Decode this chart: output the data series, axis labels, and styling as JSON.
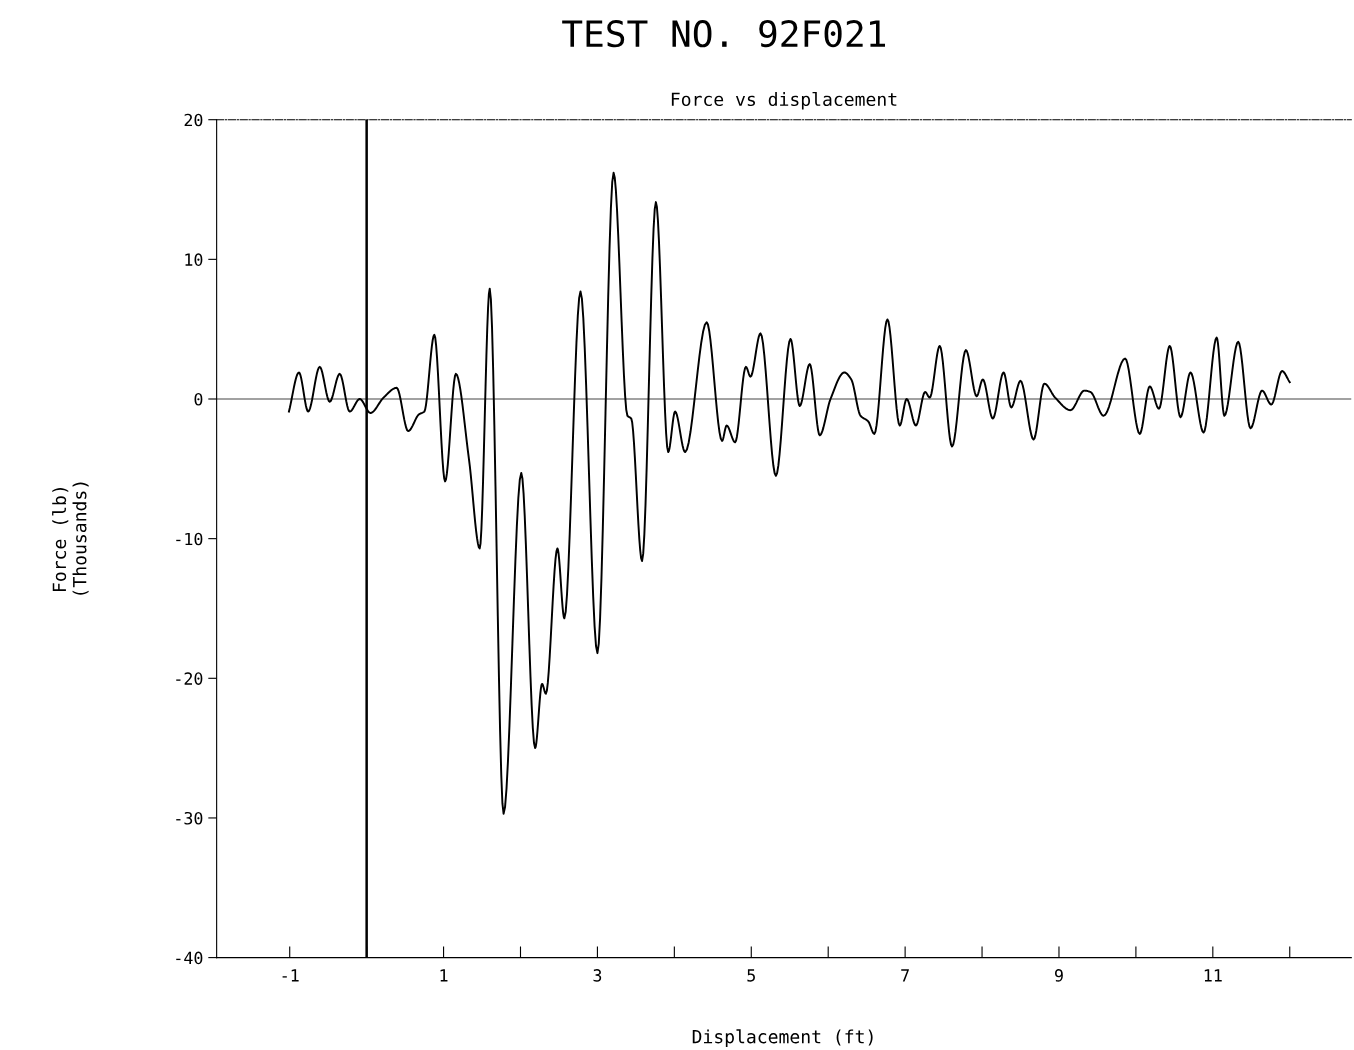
{
  "chart_data": {
    "type": "line",
    "title": "TEST NO. 92F021",
    "subtitle": "Force vs displacement",
    "xlabel": "Displacement (ft)",
    "ylabel": "Force (lb)\n(Thousands)",
    "xlim": [
      -1.95,
      12.8
    ],
    "ylim": [
      -40,
      20
    ],
    "xticks": [
      -1,
      {
        "value": 0,
        "label": null
      },
      1,
      {
        "value": 2,
        "label": null
      },
      3,
      {
        "value": 4,
        "label": null
      },
      5,
      {
        "value": 6,
        "label": null
      },
      7,
      {
        "value": 8,
        "label": null
      },
      9,
      {
        "value": 10,
        "label": null
      },
      11,
      {
        "value": 12,
        "label": null
      }
    ],
    "yticks": [
      20,
      10,
      0,
      -10,
      -20,
      -30,
      -40
    ],
    "grid": false,
    "legend": false,
    "marker": "none",
    "line_style": "solid",
    "ref_lines": [
      {
        "axis": "y",
        "value": 0,
        "label": null,
        "color": "#444444"
      },
      {
        "axis": "x",
        "value": 0,
        "label": null,
        "color": "#000000"
      }
    ],
    "series": [
      {
        "color": "#000000",
        "x": [
          -1.01,
          -0.88,
          -0.76,
          -0.61,
          -0.48,
          -0.35,
          -0.22,
          -0.09,
          0.05,
          0.22,
          0.39,
          0.54,
          0.68,
          0.75,
          0.88,
          1.02,
          1.16,
          1.33,
          1.47,
          1.6,
          1.78,
          2.01,
          2.19,
          2.28,
          2.33,
          2.48,
          2.57,
          2.78,
          3.0,
          3.21,
          3.39,
          3.44,
          3.58,
          3.76,
          3.92,
          4.01,
          4.14,
          4.42,
          4.62,
          4.68,
          4.79,
          4.93,
          4.99,
          5.12,
          5.32,
          5.51,
          5.63,
          5.76,
          5.89,
          6.03,
          6.21,
          6.3,
          6.42,
          6.52,
          6.6,
          6.77,
          6.93,
          7.02,
          7.14,
          7.26,
          7.32,
          7.45,
          7.61,
          7.79,
          7.93,
          8.01,
          8.14,
          8.28,
          8.38,
          8.5,
          8.67,
          8.81,
          8.95,
          9.15,
          9.33,
          9.41,
          9.58,
          9.86,
          10.05,
          10.18,
          10.3,
          10.44,
          10.58,
          10.71,
          10.88,
          11.05,
          11.15,
          11.33,
          11.49,
          11.64,
          11.76,
          11.9,
          12.0
        ],
        "values": [
          -0.9,
          1.9,
          -0.9,
          2.3,
          -0.2,
          1.8,
          -0.9,
          0,
          -1.0,
          0.1,
          0.8,
          -2.3,
          -1.1,
          -0.9,
          4.6,
          -5.9,
          1.8,
          -4.3,
          -10.7,
          7.9,
          -29.7,
          -5.3,
          -25.0,
          -20.4,
          -21.1,
          -10.7,
          -15.7,
          7.7,
          -18.2,
          16.2,
          -1.2,
          -1.4,
          -11.6,
          14.1,
          -3.8,
          -0.9,
          -3.8,
          5.5,
          -3.0,
          -1.9,
          -3.1,
          2.3,
          1.6,
          4.7,
          -5.5,
          4.3,
          -0.5,
          2.5,
          -2.6,
          0,
          1.9,
          1.4,
          -1.2,
          -1.6,
          -2.5,
          5.7,
          -1.9,
          0,
          -1.9,
          0.5,
          0.1,
          3.8,
          -3.4,
          3.5,
          0.2,
          1.4,
          -1.4,
          1.9,
          -0.6,
          1.3,
          -2.9,
          1.1,
          0.1,
          -0.8,
          0.6,
          0.5,
          -1.2,
          2.9,
          -2.5,
          0.9,
          -0.7,
          3.8,
          -1.3,
          1.9,
          -2.4,
          4.4,
          -1.2,
          4.1,
          -2.1,
          0.6,
          -0.4,
          2.0,
          1.2
        ]
      }
    ]
  }
}
